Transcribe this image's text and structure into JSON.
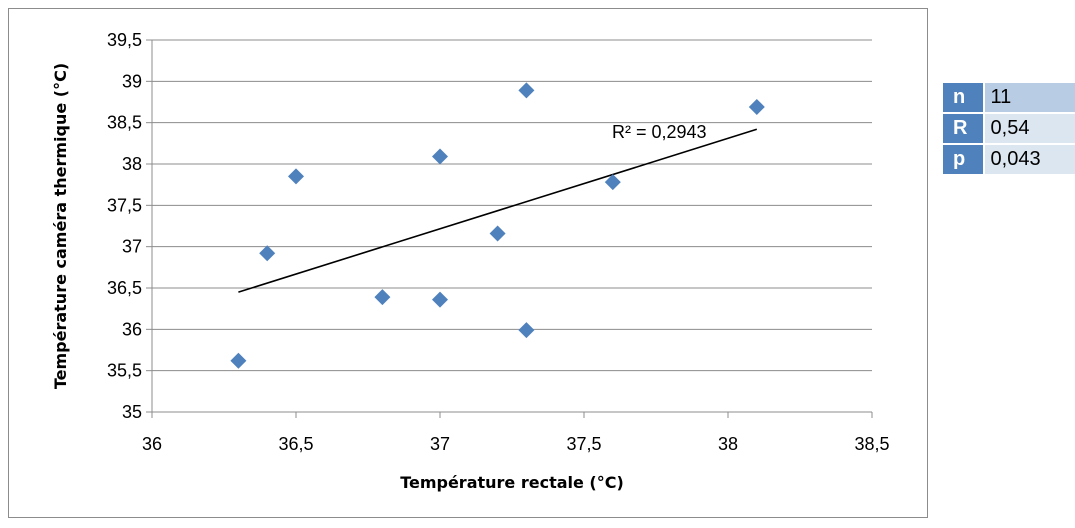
{
  "chart_data": {
    "type": "scatter",
    "title": "",
    "xlabel": "Température rectale (°C)",
    "ylabel": "Température caméra thermique (°C)",
    "xlim": [
      36,
      38.5
    ],
    "ylim": [
      35,
      39.5
    ],
    "xticks": [
      "36",
      "36,5",
      "37",
      "37,5",
      "38",
      "38,5"
    ],
    "xtick_values": [
      36,
      36.5,
      37,
      37.5,
      38,
      38.5
    ],
    "yticks": [
      "35",
      "35,5",
      "36",
      "36,5",
      "37",
      "37,5",
      "38",
      "38,5",
      "39",
      "39,5"
    ],
    "ytick_values": [
      35,
      35.5,
      36,
      36.5,
      37,
      37.5,
      38,
      38.5,
      39,
      39.5
    ],
    "grid": "horizontal",
    "marker_color": "#4f81bd",
    "points": [
      {
        "x": 36.3,
        "y": 35.62
      },
      {
        "x": 36.4,
        "y": 36.92
      },
      {
        "x": 36.5,
        "y": 37.85
      },
      {
        "x": 36.8,
        "y": 36.39
      },
      {
        "x": 37.0,
        "y": 36.36
      },
      {
        "x": 37.0,
        "y": 38.09
      },
      {
        "x": 37.2,
        "y": 37.16
      },
      {
        "x": 37.3,
        "y": 38.89
      },
      {
        "x": 37.3,
        "y": 35.99
      },
      {
        "x": 37.6,
        "y": 37.78
      },
      {
        "x": 38.1,
        "y": 38.69
      }
    ],
    "trendline": {
      "x": [
        36.3,
        38.1
      ],
      "y": [
        36.45,
        38.42
      ]
    },
    "r2_label": "R² = 0,2943"
  },
  "stats": [
    {
      "key": "n",
      "value": "11"
    },
    {
      "key": "R",
      "value": "0,54"
    },
    {
      "key": "p",
      "value": "0,043"
    }
  ]
}
